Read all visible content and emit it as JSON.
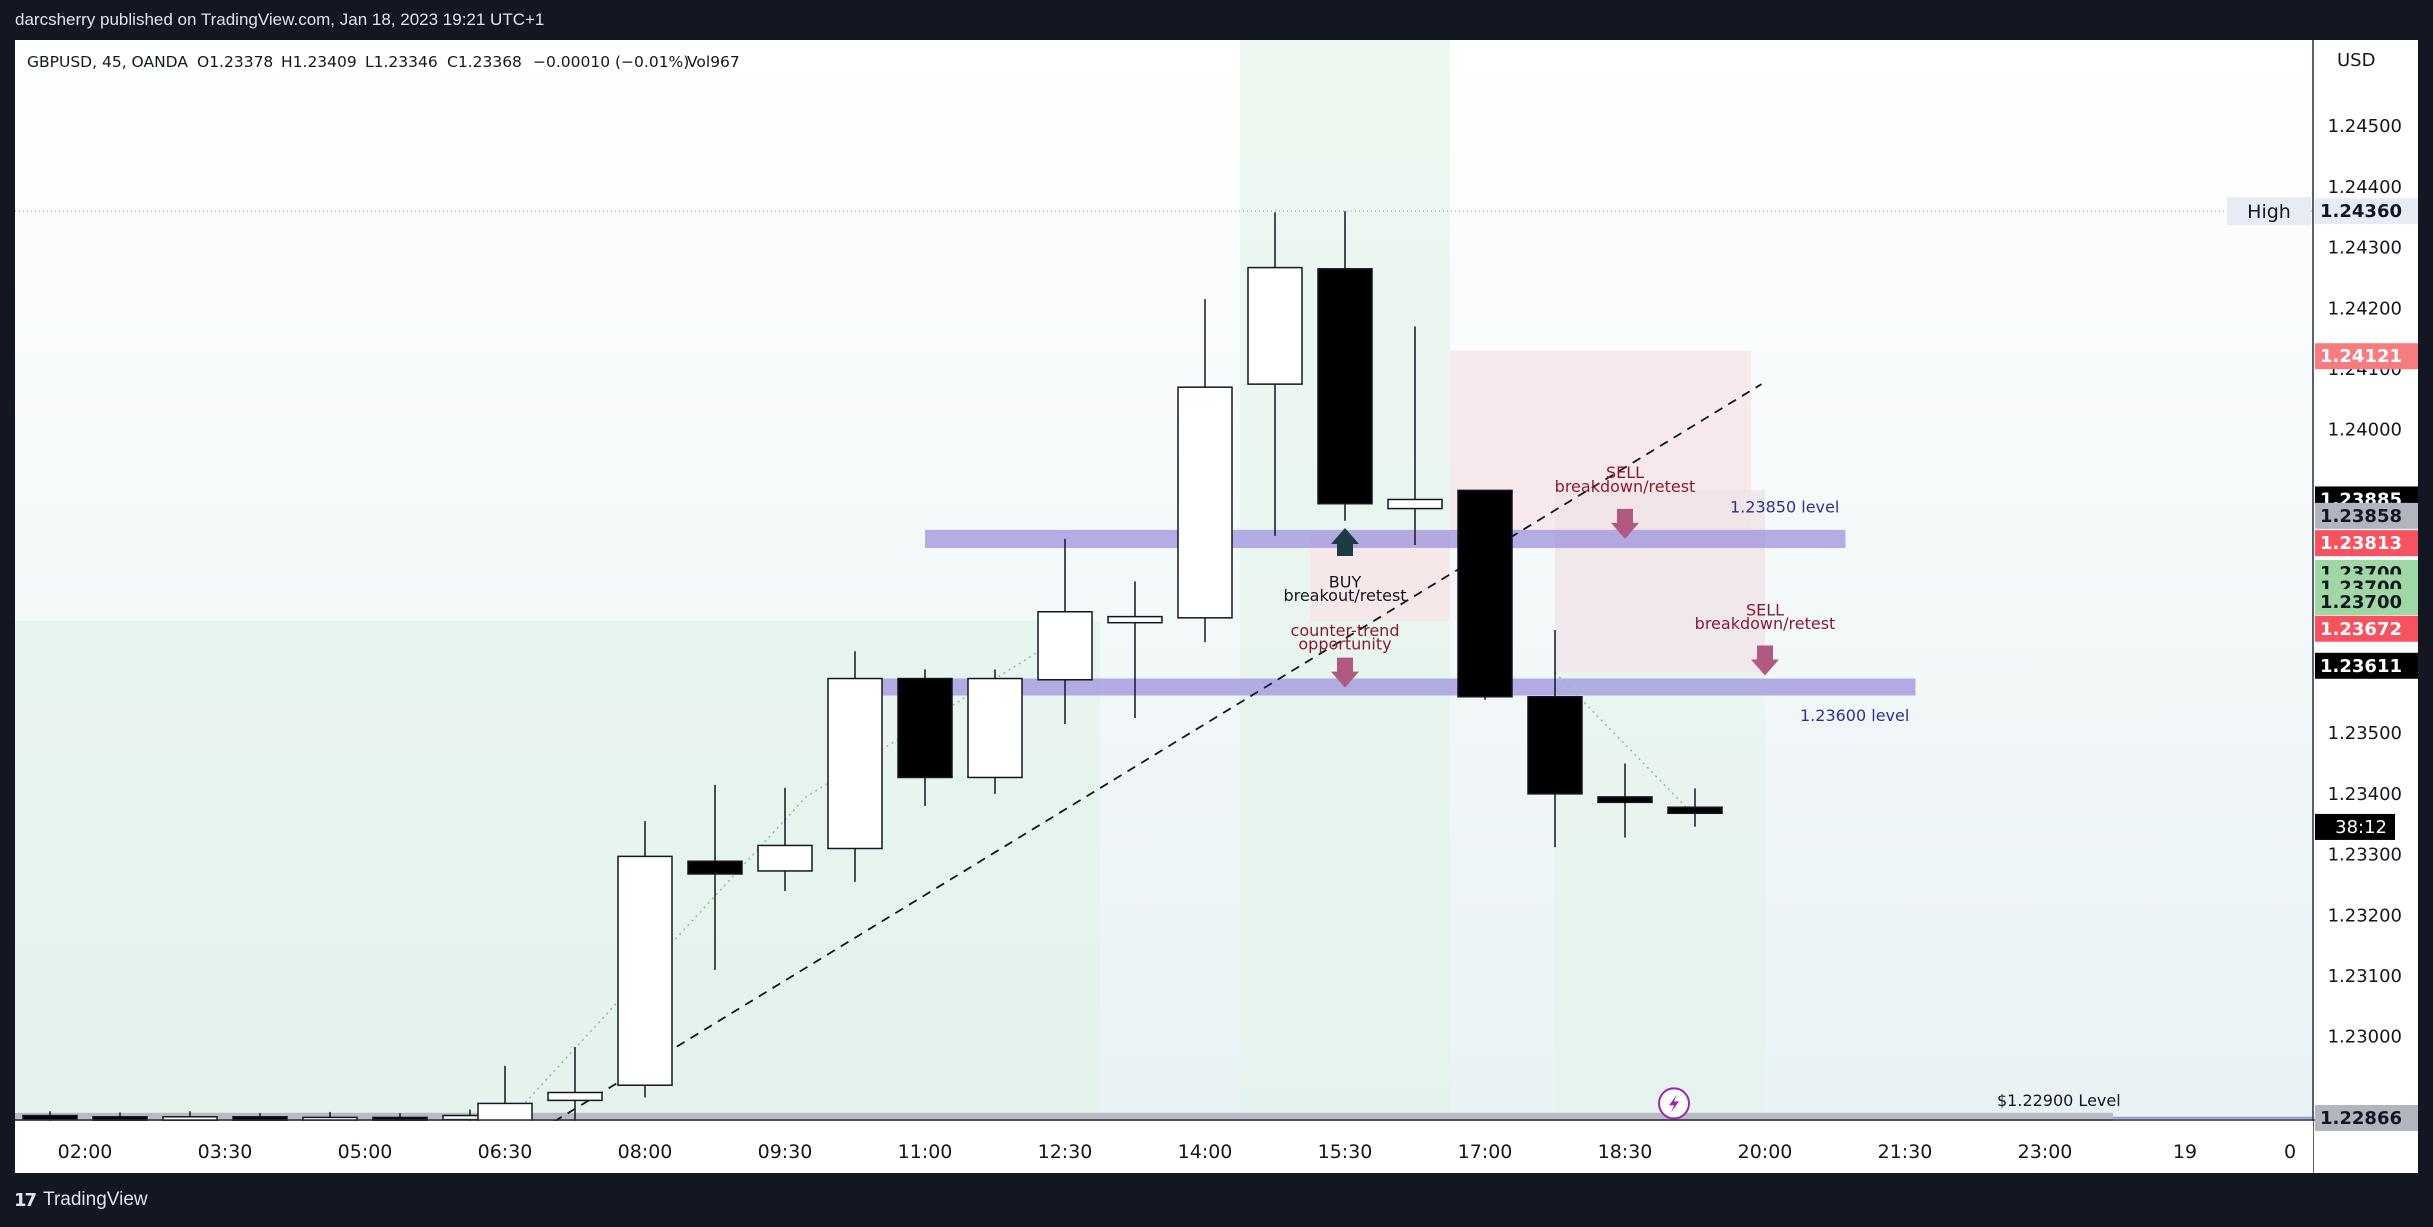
{
  "header": {
    "publisher_line": "darcsherry published on TradingView.com, Jan 18, 2023 19:21 UTC+1"
  },
  "legend": {
    "symbol": "GBPUSD, 45, OANDA",
    "open": "O1.23378",
    "high": "H1.23409",
    "low": "L1.23346",
    "close": "C1.23368",
    "change": "−0.00010 (−0.01%)",
    "volume": "Vol967"
  },
  "footer": {
    "brand": "TradingView"
  },
  "colors": {
    "bg_dark": "#131722",
    "up_body": "#ffffff",
    "down_body": "#000000",
    "zone": "#9d93dd",
    "arrow": "#b05a82",
    "annotation_text": "#8b1a2e",
    "level_text": "#2e2f95",
    "green_shade": "#e4f3ea",
    "pink_shade": "#f7e5e8"
  },
  "chart_data": {
    "type": "candlestick",
    "symbol": "GBPUSD",
    "timeframe": "45",
    "currency_label": "USD",
    "ylim": [
      1.2282,
      1.2468
    ],
    "y_ticks": [
      "1.24500",
      "1.24400",
      "1.24300",
      "1.24200",
      "1.24100",
      "1.24000",
      "1.23500",
      "1.23400",
      "1.23300",
      "1.23200",
      "1.23100",
      "1.23000"
    ],
    "x_ticks": [
      {
        "label": "02:00",
        "slot": -22
      },
      {
        "label": "03:30",
        "slot": -20
      },
      {
        "label": "05:00",
        "slot": -18
      },
      {
        "label": "06:30",
        "slot": -16
      },
      {
        "label": "08:00",
        "slot": -14
      },
      {
        "label": "09:30",
        "slot": -12
      },
      {
        "label": "11:00",
        "slot": -10
      },
      {
        "label": "12:30",
        "slot": -8
      },
      {
        "label": "14:00",
        "slot": -6
      },
      {
        "label": "15:30",
        "slot": -4
      },
      {
        "label": "17:00",
        "slot": -2
      },
      {
        "label": "18:30",
        "slot": 0
      },
      {
        "label": "20:00",
        "slot": 2
      },
      {
        "label": "21:30",
        "slot": 4
      },
      {
        "label": "23:00",
        "slot": 6
      },
      {
        "label": "19",
        "slot": 8
      },
      {
        "label": "0",
        "slot": 9.5
      }
    ],
    "candles": [
      {
        "slot": -22.5,
        "o": 1.2287,
        "h": 1.22877,
        "l": 1.2286,
        "c": 1.22868
      },
      {
        "slot": -21.5,
        "o": 1.22868,
        "h": 1.22875,
        "l": 1.2286,
        "c": 1.22866
      },
      {
        "slot": -20.5,
        "o": 1.22866,
        "h": 1.22877,
        "l": 1.2286,
        "c": 1.22868
      },
      {
        "slot": -19.5,
        "o": 1.22868,
        "h": 1.22874,
        "l": 1.2286,
        "c": 1.22866
      },
      {
        "slot": -18.5,
        "o": 1.22866,
        "h": 1.22876,
        "l": 1.2286,
        "c": 1.22867
      },
      {
        "slot": -17.5,
        "o": 1.22867,
        "h": 1.22874,
        "l": 1.2286,
        "c": 1.22866
      },
      {
        "slot": -16.5,
        "o": 1.22866,
        "h": 1.2288,
        "l": 1.22855,
        "c": 1.2287
      },
      {
        "slot": -16,
        "o": 1.2286,
        "h": 1.22952,
        "l": 1.2285,
        "c": 1.2289
      },
      {
        "slot": -15,
        "o": 1.22895,
        "h": 1.22983,
        "l": 1.2283,
        "c": 1.22908
      },
      {
        "slot": -14,
        "o": 1.2292,
        "h": 1.23355,
        "l": 1.229,
        "c": 1.23297
      },
      {
        "slot": -13,
        "o": 1.23289,
        "h": 1.23415,
        "l": 1.2311,
        "c": 1.23268
      },
      {
        "slot": -12,
        "o": 1.23273,
        "h": 1.2341,
        "l": 1.2324,
        "c": 1.23315
      },
      {
        "slot": -11,
        "o": 1.2331,
        "h": 1.23635,
        "l": 1.23255,
        "c": 1.2359
      },
      {
        "slot": -10,
        "o": 1.2359,
        "h": 1.23605,
        "l": 1.2338,
        "c": 1.23427
      },
      {
        "slot": -9,
        "o": 1.23427,
        "h": 1.23605,
        "l": 1.234,
        "c": 1.2359
      },
      {
        "slot": -8,
        "o": 1.23588,
        "h": 1.2382,
        "l": 1.23515,
        "c": 1.237
      },
      {
        "slot": -7,
        "o": 1.23682,
        "h": 1.2375,
        "l": 1.23525,
        "c": 1.23692
      },
      {
        "slot": -6,
        "o": 1.2369,
        "h": 1.24215,
        "l": 1.2365,
        "c": 1.2407
      },
      {
        "slot": -5,
        "o": 1.24075,
        "h": 1.24358,
        "l": 1.23825,
        "c": 1.24267
      },
      {
        "slot": -4,
        "o": 1.24265,
        "h": 1.2436,
        "l": 1.2385,
        "c": 1.23878
      },
      {
        "slot": -3,
        "o": 1.2387,
        "h": 1.2417,
        "l": 1.2381,
        "c": 1.23885
      },
      {
        "slot": -2,
        "o": 1.239,
        "h": 1.23895,
        "l": 1.23555,
        "c": 1.2356
      },
      {
        "slot": -1,
        "o": 1.2356,
        "h": 1.2367,
        "l": 1.23312,
        "c": 1.234
      },
      {
        "slot": 0,
        "o": 1.23395,
        "h": 1.2345,
        "l": 1.23328,
        "c": 1.23386
      },
      {
        "slot": 1,
        "o": 1.23378,
        "h": 1.23409,
        "l": 1.23346,
        "c": 1.23368
      }
    ],
    "horizontal_zones": [
      {
        "name": "zone-1.23850",
        "label": "1.23850 level",
        "low": 1.23805,
        "high": 1.23835,
        "from_slot": -10,
        "to_slot": 3.15
      },
      {
        "name": "zone-1.23600",
        "label": "1.23600 level",
        "low": 1.23562,
        "high": 1.2359,
        "from_slot": -11,
        "to_slot": 4.15
      }
    ],
    "level_line": {
      "label": "$1.22900 Level",
      "price": 1.22868
    },
    "high_line": {
      "label": "High",
      "price": 1.2436
    },
    "trend_line": {
      "from": [
        -15.3,
        1.2286
      ],
      "to": [
        1.95,
        1.24075
      ]
    },
    "dotted_path": [
      [
        -16,
        1.22855
      ],
      [
        -11.7,
        1.23395
      ],
      [
        -8.3,
        1.2364
      ],
      [
        -7.6,
        1.23695
      ]
    ],
    "dotted_path_2": [
      [
        -1,
        1.236
      ],
      [
        0.9,
        1.23375
      ]
    ],
    "annotations": [
      {
        "name": "buy-breakout",
        "line1": "BUY",
        "line2": "breakout/retest",
        "slot": -4,
        "price": 1.23765
      },
      {
        "name": "counter-trend",
        "line1": "counter-trend",
        "line2": "opportunity",
        "slot": -4,
        "price": 1.2364
      },
      {
        "name": "sell-1",
        "line1": "SELL",
        "line2": "breakdown/retest",
        "slot": 0,
        "price": 1.2389
      },
      {
        "name": "sell-2",
        "line1": "SELL",
        "line2": "breakdown/retest",
        "slot": 2,
        "price": 1.2366
      }
    ],
    "price_labels": [
      {
        "text": "1.24360",
        "price": 1.2436,
        "bg": "#e7ecf4",
        "fg": "#131722"
      },
      {
        "text": "1.24121",
        "price": 1.24121,
        "bg": "#f77c80",
        "fg": "#ffffff"
      },
      {
        "text": "1.23885",
        "price": 1.23885,
        "bg": "#000000",
        "fg": "#ffffff"
      },
      {
        "text": "1.23858",
        "price": 1.23858,
        "bg": "#b2b5be",
        "fg": "#131722"
      },
      {
        "text": "1.23813",
        "price": 1.23813,
        "bg": "#f7525f",
        "fg": "#ffffff"
      },
      {
        "text": "1.23700",
        "price": 1.23764,
        "bg": "#9fd8a4",
        "fg": "#131722"
      },
      {
        "text": "1.23700",
        "price": 1.2374,
        "bg": "#9fd8a4",
        "fg": "#131722"
      },
      {
        "text": "1.23700",
        "price": 1.23716,
        "bg": "#9fd8a4",
        "fg": "#131722"
      },
      {
        "text": "1.23672",
        "price": 1.23672,
        "bg": "#f7525f",
        "fg": "#ffffff"
      },
      {
        "text": "1.23611",
        "price": 1.23611,
        "bg": "#000000",
        "fg": "#ffffff"
      },
      {
        "text": "1.22866",
        "price": 1.22866,
        "bg": "#b2b5be",
        "fg": "#131722"
      }
    ],
    "countdown": {
      "text": "38:12",
      "price": 1.23362
    }
  }
}
